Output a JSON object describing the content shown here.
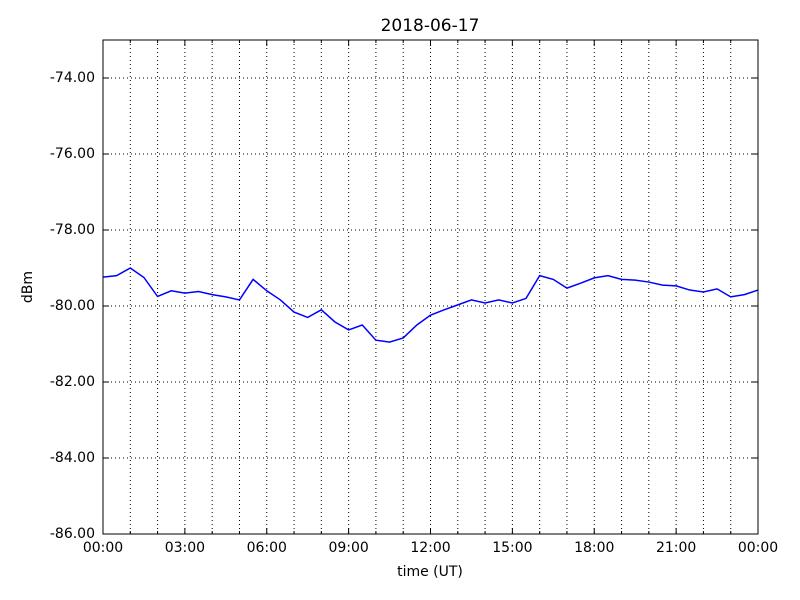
{
  "chart_data": {
    "type": "line",
    "title": "2018-06-17",
    "xlabel": "time (UT)",
    "ylabel": "dBm",
    "x": [
      0,
      0.5,
      1,
      1.5,
      2,
      2.5,
      3,
      3.5,
      4,
      4.5,
      5,
      5.5,
      6,
      6.5,
      7,
      7.5,
      8,
      8.5,
      9,
      9.5,
      10,
      10.5,
      11,
      11.5,
      12,
      12.5,
      13,
      13.5,
      14,
      14.5,
      15,
      15.5,
      16,
      16.5,
      17,
      17.5,
      18,
      18.5,
      19,
      19.5,
      20,
      20.5,
      21,
      21.5,
      22,
      22.5,
      23,
      23.5,
      24
    ],
    "series": [
      {
        "name": "dBm",
        "color": "#0000ff",
        "values": [
          -79.24,
          -79.2,
          -79.0,
          -79.25,
          -79.75,
          -79.6,
          -79.66,
          -79.62,
          -79.7,
          -79.76,
          -79.84,
          -79.3,
          -79.6,
          -79.84,
          -80.16,
          -80.3,
          -80.1,
          -80.42,
          -80.63,
          -80.5,
          -80.9,
          -80.95,
          -80.84,
          -80.5,
          -80.24,
          -80.1,
          -79.97,
          -79.84,
          -79.92,
          -79.84,
          -79.92,
          -79.8,
          -79.2,
          -79.3,
          -79.53,
          -79.4,
          -79.26,
          -79.2,
          -79.3,
          -79.32,
          -79.37,
          -79.45,
          -79.47,
          -79.58,
          -79.63,
          -79.55,
          -79.76,
          -79.7,
          -79.58
        ]
      }
    ],
    "xlim": [
      0,
      24
    ],
    "xticks": [
      {
        "value": 0,
        "label": "00:00"
      },
      {
        "value": 3,
        "label": "03:00"
      },
      {
        "value": 6,
        "label": "06:00"
      },
      {
        "value": 9,
        "label": "09:00"
      },
      {
        "value": 12,
        "label": "12:00"
      },
      {
        "value": 15,
        "label": "15:00"
      },
      {
        "value": 18,
        "label": "18:00"
      },
      {
        "value": 21,
        "label": "21:00"
      },
      {
        "value": 24,
        "label": "00:00"
      }
    ],
    "xminor": [
      1,
      2,
      4,
      5,
      7,
      8,
      10,
      11,
      13,
      14,
      16,
      17,
      19,
      20,
      22,
      23
    ],
    "ylim": [
      -86,
      -73
    ],
    "yticks": [
      {
        "value": -86,
        "label": "-86.00"
      },
      {
        "value": -84,
        "label": "-84.00"
      },
      {
        "value": -82,
        "label": "-82.00"
      },
      {
        "value": -80,
        "label": "-80.00"
      },
      {
        "value": -78,
        "label": "-78.00"
      },
      {
        "value": -76,
        "label": "-76.00"
      },
      {
        "value": -74,
        "label": "-74.00"
      }
    ],
    "grid": true
  }
}
